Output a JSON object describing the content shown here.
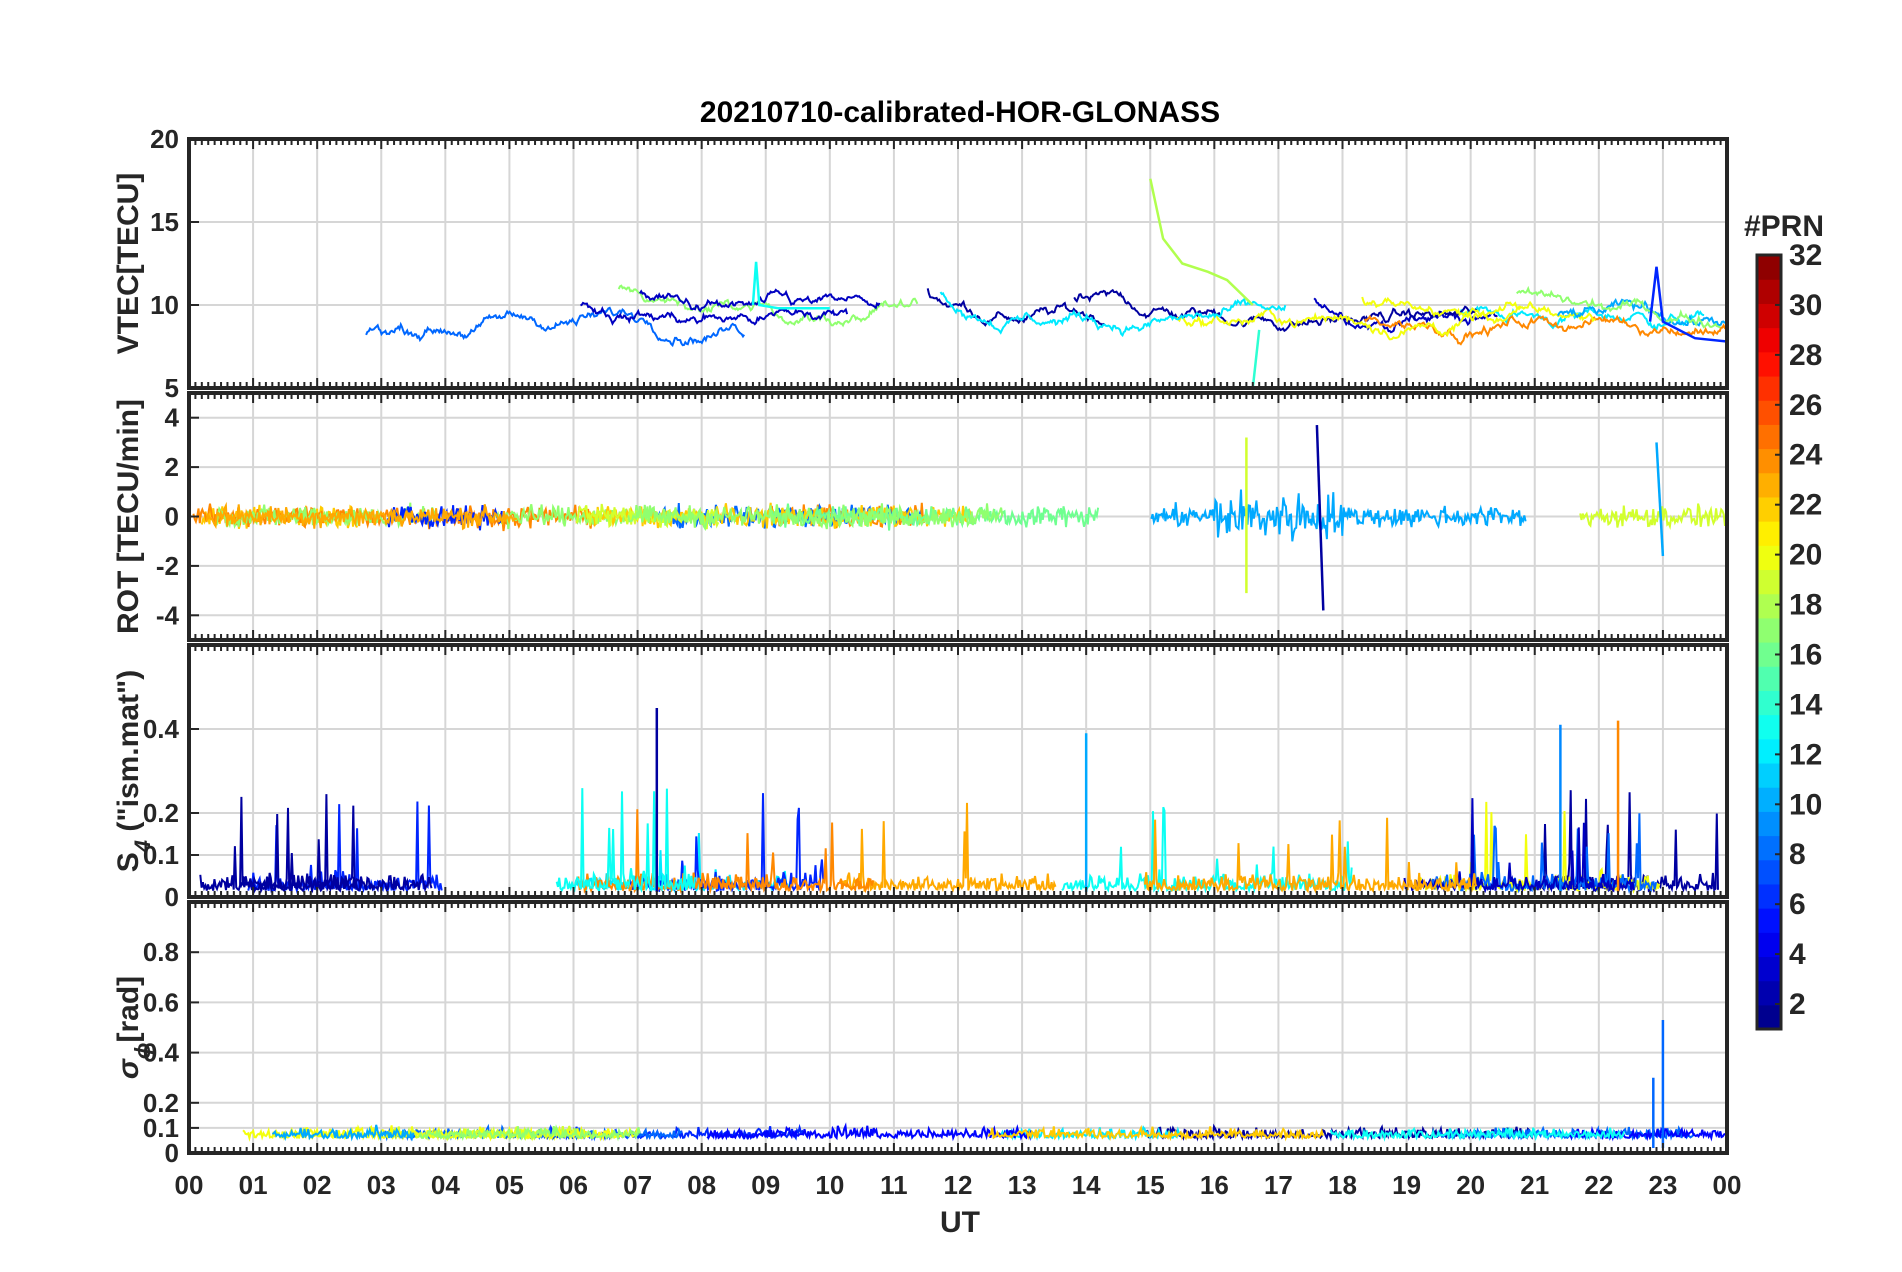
{
  "title": "20210710-calibrated-HOR-GLONASS",
  "chart_data": [
    {
      "type": "line",
      "panel": "vtec",
      "ylabel": "VTEC[TECU]",
      "ylim": [
        5,
        20
      ],
      "yticks": [
        5,
        10,
        15,
        20
      ],
      "grid": true,
      "series_summary": [
        {
          "name": "",
          "color_prn": 18,
          "points": [
            [
              15.0,
              17.6
            ],
            [
              15.2,
              14.0
            ],
            [
              15.5,
              12.5
            ],
            [
              15.9,
              12.0
            ],
            [
              16.2,
              11.5
            ],
            [
              16.6,
              10.0
            ]
          ]
        },
        {
          "name": "",
          "color_prn": 13,
          "points": [
            [
              8.8,
              10.0
            ],
            [
              8.85,
              12.6
            ],
            [
              8.9,
              10.0
            ],
            [
              9.2,
              9.8
            ],
            [
              10.0,
              9.8
            ]
          ]
        },
        {
          "name": "",
          "color_prn": 14,
          "points": [
            [
              16.7,
              8.5
            ],
            [
              16.6,
              5.0
            ]
          ]
        },
        {
          "name": "",
          "color_prn": 6,
          "points": [
            [
              22.8,
              9.0
            ],
            [
              22.9,
              12.3
            ],
            [
              23.0,
              9.0
            ],
            [
              23.5,
              8.0
            ],
            [
              24.0,
              7.8
            ]
          ]
        }
      ]
    },
    {
      "type": "line",
      "panel": "rot",
      "ylabel": "ROT [TECU/min]",
      "ylim": [
        -5,
        5
      ],
      "yticks": [
        -4,
        -2,
        0,
        2,
        4
      ],
      "grid": true,
      "series_summary": [
        {
          "name": "",
          "color_prn": 2,
          "points": [
            [
              17.6,
              3.7
            ],
            [
              17.7,
              -3.8
            ]
          ]
        },
        {
          "name": "",
          "color_prn": 19,
          "points": [
            [
              16.5,
              3.2
            ],
            [
              16.5,
              -3.1
            ]
          ]
        },
        {
          "name": "",
          "color_prn": 10,
          "points": [
            [
              22.9,
              3.0
            ],
            [
              23.0,
              -1.6
            ]
          ]
        }
      ]
    },
    {
      "type": "line",
      "panel": "s4",
      "ylabel": "S",
      "ylabel_sub": "4",
      "ylabel_rest": " (\"ism.mat\")",
      "ylim": [
        0,
        0.6
      ],
      "yticks": [
        0,
        0.1,
        0.2,
        0.4
      ],
      "grid": true,
      "series_summary": [
        {
          "name": "",
          "color_prn": 2,
          "points": [
            [
              7.3,
              0.45
            ]
          ]
        },
        {
          "name": "",
          "color_prn": 24,
          "points": [
            [
              22.3,
              0.42
            ]
          ]
        },
        {
          "name": "",
          "color_prn": 9,
          "points": [
            [
              21.4,
              0.41
            ]
          ]
        },
        {
          "name": "",
          "color_prn": 10,
          "points": [
            [
              14.0,
              0.39
            ]
          ]
        }
      ]
    },
    {
      "type": "line",
      "panel": "sigma",
      "ylabel": "σ",
      "ylabel_sub": "ϕ",
      "ylabel_rest": "[rad]",
      "ylim": [
        0,
        1
      ],
      "yticks": [
        0,
        0.1,
        0.2,
        0.4,
        0.6,
        0.8
      ],
      "grid": true,
      "series_summary": [
        {
          "name": "",
          "color_prn": 8,
          "points": [
            [
              23.0,
              0.53
            ]
          ]
        },
        {
          "name": "",
          "color_prn": 8,
          "points": [
            [
              22.85,
              0.3
            ]
          ]
        }
      ]
    }
  ],
  "xaxis": {
    "label": "UT",
    "ticks": [
      "00",
      "01",
      "02",
      "03",
      "04",
      "05",
      "06",
      "07",
      "08",
      "09",
      "10",
      "11",
      "12",
      "13",
      "14",
      "15",
      "16",
      "17",
      "18",
      "19",
      "20",
      "21",
      "22",
      "23",
      "00"
    ],
    "range": [
      0,
      24
    ]
  },
  "colorbar": {
    "label": "#PRN",
    "range": [
      1,
      32
    ],
    "ticks": [
      "2",
      "4",
      "6",
      "8",
      "10",
      "12",
      "14",
      "16",
      "18",
      "20",
      "22",
      "24",
      "26",
      "28",
      "30",
      "32"
    ],
    "colormap": "jet"
  }
}
